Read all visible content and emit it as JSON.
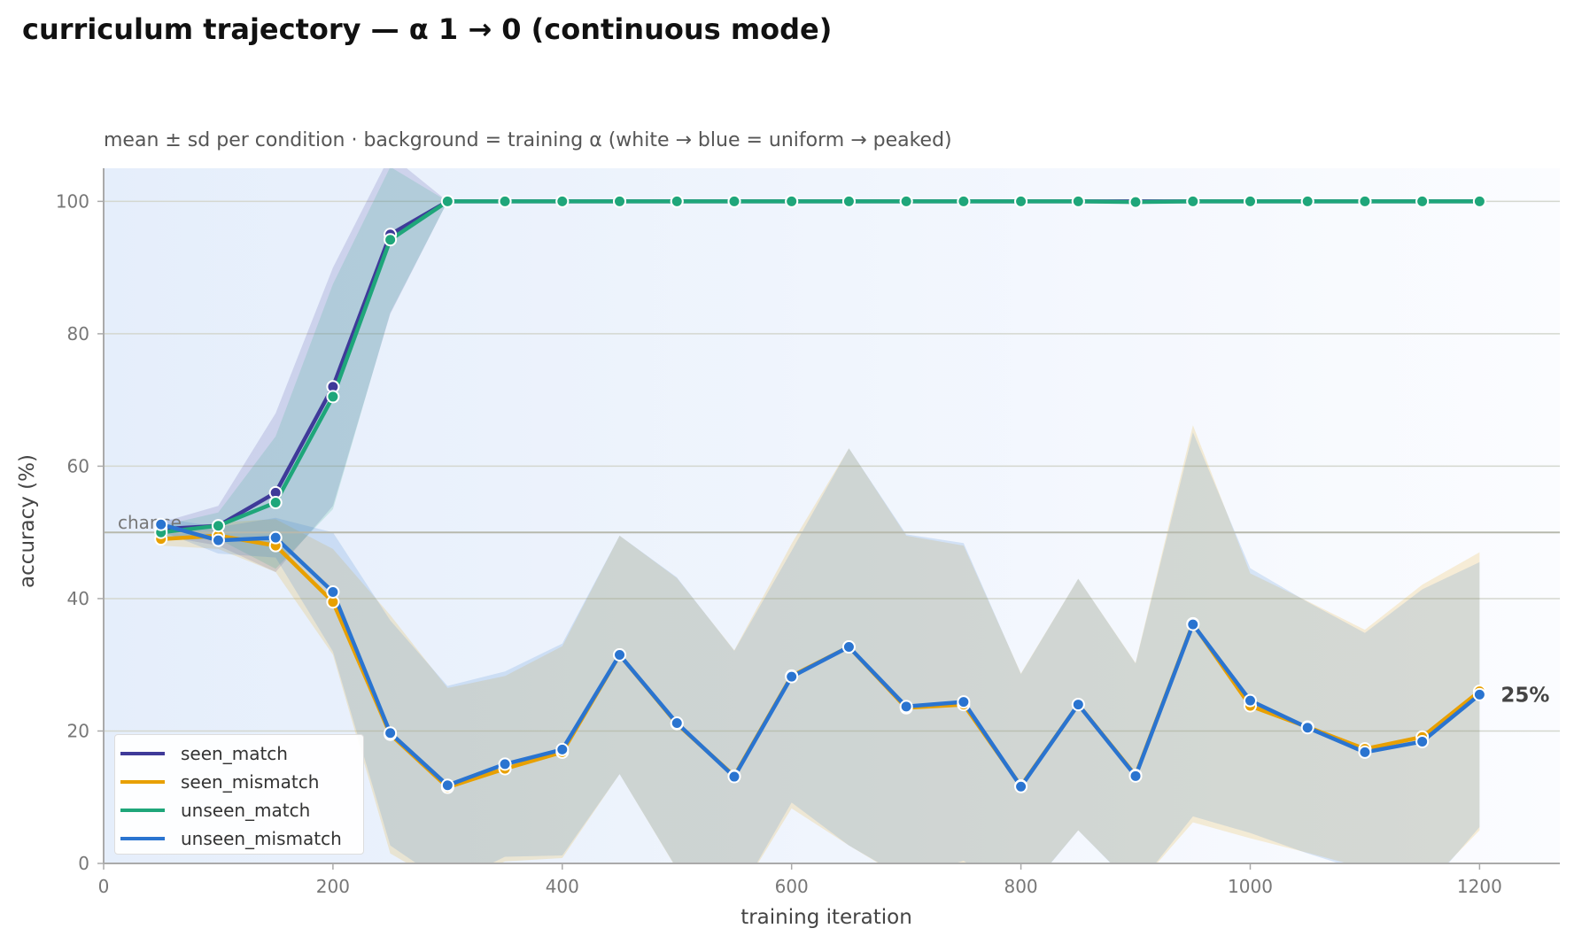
{
  "chart_data": {
    "type": "line",
    "title": "curriculum trajectory — α 1 → 0 (continuous mode)",
    "subtitle": "mean ± sd per condition · background = training α (white → blue = uniform → peaked)",
    "xlabel": "training iteration",
    "ylabel": "accuracy (%)",
    "xlim": [
      0,
      1270
    ],
    "ylim": [
      0,
      105
    ],
    "xticks": [
      0,
      200,
      400,
      600,
      800,
      1000,
      1200
    ],
    "yticks": [
      0,
      20,
      40,
      60,
      80,
      100
    ],
    "grid": "horizontal",
    "legend_position": "lower-left",
    "chance": {
      "label": "chance",
      "value": 50
    },
    "end_annotation": "25%",
    "x": [
      50,
      100,
      150,
      200,
      250,
      300,
      350,
      400,
      450,
      500,
      550,
      600,
      650,
      700,
      750,
      800,
      850,
      900,
      950,
      1000,
      1050,
      1100,
      1150,
      1200
    ],
    "series": [
      {
        "name": "seen_match",
        "color": "#3f3a99",
        "values": [
          50.5,
          51,
          56,
          72,
          95,
          100,
          100,
          100,
          100,
          100,
          100,
          100,
          100,
          100,
          100,
          100,
          100,
          100,
          100,
          100,
          100,
          100,
          100,
          100
        ],
        "sd": [
          1,
          3,
          12,
          18,
          12,
          0,
          0,
          0,
          0,
          0,
          0,
          0,
          0,
          0,
          0,
          0,
          0,
          0,
          0,
          0,
          0,
          0,
          0,
          0
        ]
      },
      {
        "name": "seen_mismatch",
        "color": "#e8a000",
        "values": [
          49,
          49.5,
          48,
          39.5,
          19.5,
          11.5,
          14.3,
          16.8,
          31.5,
          21.1,
          13.2,
          28.3,
          32.7,
          23.5,
          24,
          11.7,
          24,
          13.3,
          36.2,
          23.8,
          20.6,
          17.3,
          19.1,
          26
        ],
        "sd": [
          1,
          2,
          4,
          8,
          18,
          15,
          14,
          16,
          18,
          22,
          19,
          20,
          30,
          26,
          24,
          17,
          19,
          17,
          30,
          20,
          19,
          18,
          23,
          21
        ]
      },
      {
        "name": "unseen_match",
        "color": "#1fa67a",
        "values": [
          50,
          51,
          54.5,
          70.5,
          94.2,
          100,
          100,
          100,
          100,
          100,
          100,
          100,
          100,
          100,
          100,
          100,
          100,
          99.9,
          100,
          100,
          100,
          100,
          100,
          100
        ],
        "sd": [
          1,
          2,
          10,
          17,
          11,
          0,
          0,
          0,
          0,
          0,
          0,
          0,
          0,
          0,
          0,
          0,
          0,
          0,
          0,
          0,
          0,
          0,
          0,
          0
        ]
      },
      {
        "name": "unseen_mismatch",
        "color": "#2a74d0",
        "values": [
          51.2,
          48.8,
          49.2,
          41,
          19.7,
          11.8,
          15,
          17.2,
          31.5,
          21.2,
          13.1,
          28.2,
          32.7,
          23.7,
          24.4,
          11.6,
          24,
          13.2,
          36.1,
          24.6,
          20.5,
          16.8,
          18.4,
          25.5
        ],
        "sd": [
          1,
          2,
          3,
          9,
          17,
          15,
          14,
          16,
          18,
          22,
          19,
          19,
          30,
          26,
          24,
          17,
          19,
          17,
          29,
          20,
          19,
          18,
          23,
          20
        ]
      }
    ]
  }
}
